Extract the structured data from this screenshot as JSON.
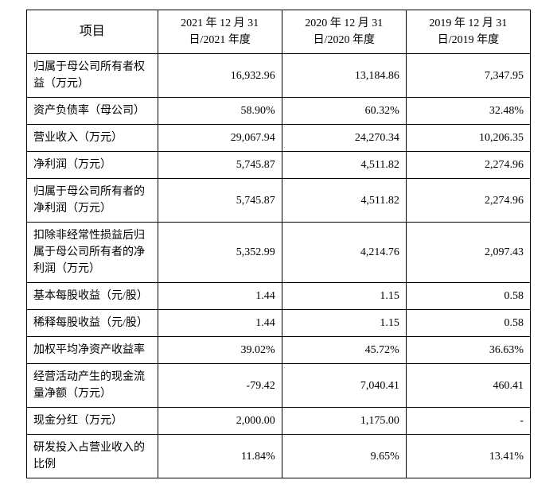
{
  "table": {
    "header": {
      "label": "项目",
      "col1": "2021 年 12 月 31 日/2021 年度",
      "col2": "2020 年 12 月 31 日/2020 年度",
      "col3": "2019 年 12 月 31 日/2019 年度"
    },
    "rows": [
      {
        "label": "归属于母公司所有者权益（万元）",
        "c1": "16,932.96",
        "c2": "13,184.86",
        "c3": "7,347.95"
      },
      {
        "label": "资产负债率（母公司）",
        "c1": "58.90%",
        "c2": "60.32%",
        "c3": "32.48%"
      },
      {
        "label": "营业收入（万元）",
        "c1": "29,067.94",
        "c2": "24,270.34",
        "c3": "10,206.35"
      },
      {
        "label": "净利润（万元）",
        "c1": "5,745.87",
        "c2": "4,511.82",
        "c3": "2,274.96"
      },
      {
        "label": "归属于母公司所有者的净利润（万元）",
        "c1": "5,745.87",
        "c2": "4,511.82",
        "c3": "2,274.96"
      },
      {
        "label": "扣除非经常性损益后归属于母公司所有者的净利润（万元）",
        "c1": "5,352.99",
        "c2": "4,214.76",
        "c3": "2,097.43"
      },
      {
        "label": "基本每股收益（元/股）",
        "c1": "1.44",
        "c2": "1.15",
        "c3": "0.58"
      },
      {
        "label": "稀释每股收益（元/股）",
        "c1": "1.44",
        "c2": "1.15",
        "c3": "0.58"
      },
      {
        "label": "加权平均净资产收益率",
        "c1": "39.02%",
        "c2": "45.72%",
        "c3": "36.63%"
      },
      {
        "label": "经营活动产生的现金流量净额（万元）",
        "c1": "-79.42",
        "c2": "7,040.41",
        "c3": "460.41"
      },
      {
        "label": "现金分红（万元）",
        "c1": "2,000.00",
        "c2": "1,175.00",
        "c3": "-"
      },
      {
        "label": "研发投入占营业收入的比例",
        "c1": "11.84%",
        "c2": "9.65%",
        "c3": "13.41%"
      }
    ],
    "styling": {
      "border_color": "#000000",
      "background_color": "#ffffff",
      "header_fontsize": 14,
      "label_header_fontsize": 16,
      "body_fontsize": 14,
      "font_family": "SimSun",
      "col_widths_pct": [
        26,
        24.666,
        24.666,
        24.666
      ],
      "text_color": "#000000",
      "value_align": "right",
      "label_align": "left",
      "header_align": "center"
    }
  }
}
